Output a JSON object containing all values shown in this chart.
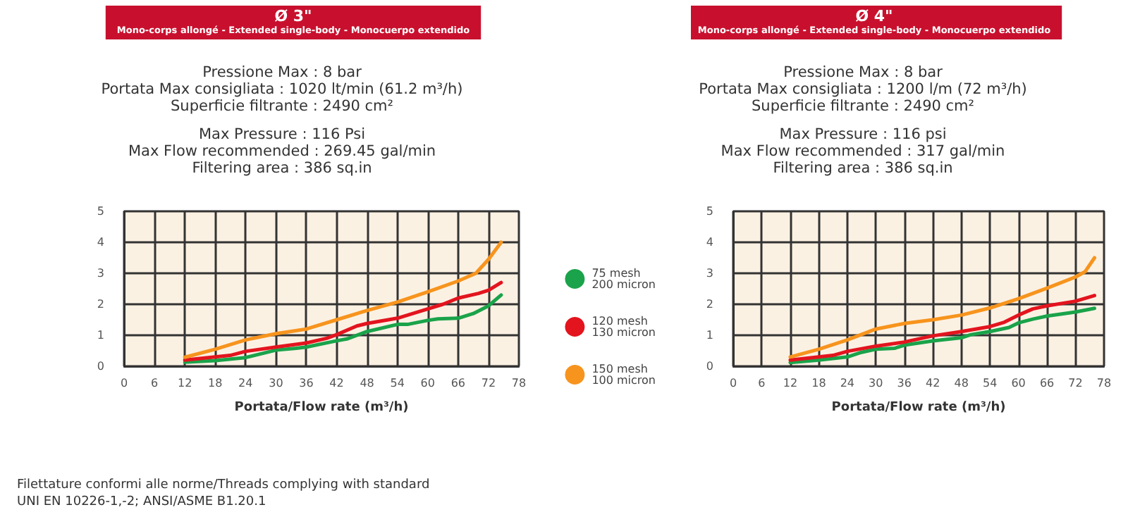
{
  "chart_data": [
    {
      "type": "line",
      "title": "Ø 3\"",
      "subtitle": "Mono-corps allongé - Extended single-body - Monocuerpo extendido",
      "xlabel": "Portata/Flow rate (m³/h)",
      "xlim": [
        0,
        78
      ],
      "xticks": [
        0,
        6,
        12,
        18,
        24,
        30,
        36,
        42,
        48,
        54,
        60,
        66,
        72,
        78
      ],
      "ylim": [
        0,
        5
      ],
      "yticks": [
        0,
        1,
        2,
        3,
        4,
        5
      ],
      "grid": true,
      "legend": "right",
      "marker": "none",
      "line_style": "solid",
      "annotations": [
        "Pressione Max : 8 bar",
        "Portata Max consigliata : 1020 lt/min (61.2 m³/h)",
        "Superficie filtrante : 2490 cm²",
        "Max Pressure : 116 Psi",
        "Max Flow recommended : 269.45 gal/min",
        "Filtering area : 386 sq.in",
        "Filettature conformi alle norme/Threads complying with standard",
        "UNI EN 10226-1,-2; ANSI/ASME B1.20.1"
      ],
      "series": [
        {
          "name": "75 mesh\n200 micron",
          "color": "#1aa34a",
          "x": [
            12,
            18,
            24,
            30,
            34,
            36,
            42,
            44,
            48,
            54,
            56,
            60,
            62,
            66,
            69,
            72,
            74.5
          ],
          "values": [
            0.13,
            0.18,
            0.28,
            0.52,
            0.58,
            0.62,
            0.82,
            0.88,
            1.12,
            1.35,
            1.35,
            1.48,
            1.53,
            1.55,
            1.7,
            1.95,
            2.3
          ]
        },
        {
          "name": "120 mesh\n130 micron",
          "color": "#e3141e",
          "x": [
            12,
            18,
            21,
            24,
            30,
            36,
            40,
            42,
            46,
            48,
            54,
            60,
            63,
            66,
            70,
            72,
            74.5
          ],
          "values": [
            0.2,
            0.3,
            0.35,
            0.48,
            0.62,
            0.75,
            0.9,
            1.02,
            1.3,
            1.38,
            1.55,
            1.85,
            2.0,
            2.2,
            2.35,
            2.45,
            2.7
          ]
        },
        {
          "name": "150 mesh\n100 micron",
          "color": "#f7941d",
          "x": [
            12,
            18,
            24,
            30,
            36,
            42,
            48,
            54,
            60,
            66,
            69.5,
            72,
            74.5
          ],
          "values": [
            0.29,
            0.55,
            0.85,
            1.05,
            1.2,
            1.5,
            1.8,
            2.07,
            2.4,
            2.75,
            3.0,
            3.45,
            4.0
          ]
        }
      ]
    },
    {
      "type": "line",
      "title": "Ø 4\"",
      "subtitle": "Mono-corps allongé - Extended single-body - Monocuerpo extendido",
      "xlabel": "Portata/Flow rate (m³/h)",
      "xlim": [
        0,
        78
      ],
      "xticks": [
        0,
        6,
        12,
        18,
        24,
        30,
        36,
        42,
        48,
        54,
        60,
        66,
        72,
        78
      ],
      "ylim": [
        0,
        5
      ],
      "yticks": [
        0,
        1,
        2,
        3,
        4,
        5
      ],
      "grid": true,
      "marker": "none",
      "line_style": "solid",
      "annotations": [
        "Pressione Max : 8 bar",
        "Portata Max consigliata : 1200 l/m (72 m³/h)",
        "Superficie filtrante : 2490 cm²",
        "Max Pressure : 116 psi",
        "Max Flow recommended : 317 gal/min",
        "Filtering area : 386 sq.in"
      ],
      "series": [
        {
          "color": "#1aa34a",
          "x": [
            12,
            18,
            24,
            27,
            30,
            34,
            36,
            42,
            48,
            50,
            54,
            58,
            60,
            63,
            66,
            72,
            76
          ],
          "values": [
            0.12,
            0.2,
            0.3,
            0.45,
            0.55,
            0.58,
            0.68,
            0.82,
            0.92,
            1.02,
            1.12,
            1.25,
            1.4,
            1.52,
            1.62,
            1.75,
            1.87
          ]
        },
        {
          "color": "#e3141e",
          "x": [
            12,
            18,
            21,
            24,
            30,
            36,
            42,
            48,
            54,
            57,
            60,
            63,
            66,
            72,
            76
          ],
          "values": [
            0.2,
            0.3,
            0.35,
            0.48,
            0.65,
            0.78,
            0.98,
            1.12,
            1.28,
            1.42,
            1.65,
            1.85,
            1.95,
            2.1,
            2.28
          ]
        },
        {
          "color": "#f7941d",
          "x": [
            12,
            18,
            24,
            30,
            36,
            42,
            48,
            54,
            60,
            66,
            72,
            74,
            76
          ],
          "values": [
            0.3,
            0.55,
            0.85,
            1.2,
            1.38,
            1.5,
            1.65,
            1.88,
            2.18,
            2.52,
            2.88,
            3.05,
            3.5
          ]
        }
      ]
    }
  ]
}
